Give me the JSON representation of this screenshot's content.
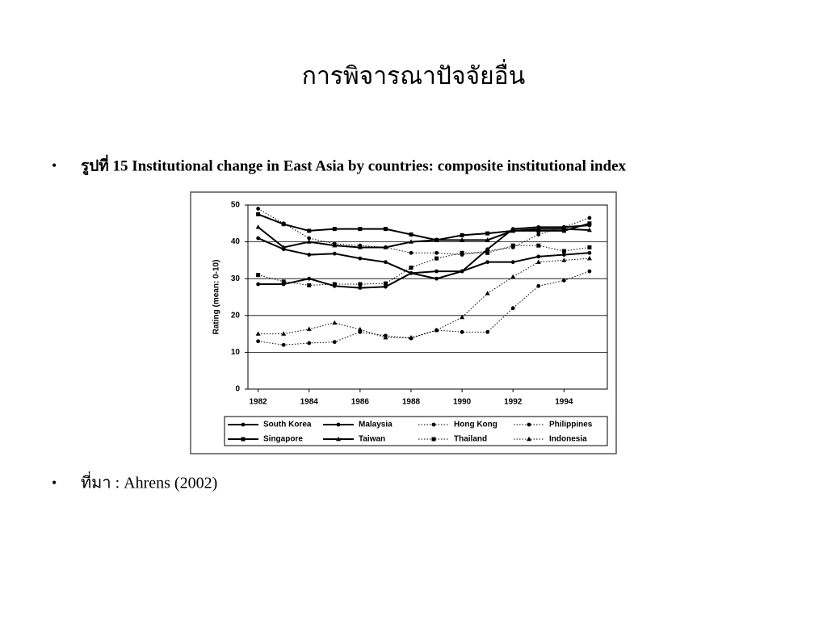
{
  "header": {
    "title": "การพิจารณาปัจจัยอื่น"
  },
  "bullets": [
    "รูปที่ 15 Institutional change in East Asia by countries: composite institutional index",
    "ที่มา : Ahrens (2002)"
  ],
  "chart_data": {
    "type": "line",
    "y_label": "Rating (mean: 0-10)",
    "x": [
      1982,
      1983,
      1984,
      1985,
      1986,
      1987,
      1988,
      1989,
      1990,
      1991,
      1992,
      1993,
      1994,
      1995
    ],
    "xlim": [
      1981.6,
      1995.7
    ],
    "xticks": [
      1982,
      1984,
      1986,
      1988,
      1990,
      1992,
      1994
    ],
    "ylim": [
      0,
      50
    ],
    "yticks": [
      0,
      10,
      20,
      30,
      40,
      50
    ],
    "grid": true,
    "series": [
      {
        "name": "South Korea",
        "color": "#000000",
        "style": "solid",
        "marker": "circle",
        "values": [
          41,
          38,
          36.5,
          36.8,
          35.5,
          34.5,
          31.5,
          30,
          32,
          34.5,
          34.5,
          36,
          36.5,
          37
        ]
      },
      {
        "name": "Malaysia",
        "color": "#000000",
        "style": "solid",
        "marker": "circle",
        "values": [
          28.5,
          28.5,
          30,
          28,
          27.5,
          27.8,
          31.5,
          32,
          32,
          38,
          43.5,
          44,
          44,
          44.5
        ]
      },
      {
        "name": "Hong Kong",
        "color": "#000000",
        "style": "dotted",
        "marker": "circle",
        "values": [
          49,
          45,
          41,
          39.5,
          39,
          38.5,
          37,
          37,
          36.5,
          37.5,
          38.5,
          42,
          44,
          46.5
        ]
      },
      {
        "name": "Philippines",
        "color": "#000000",
        "style": "dotted",
        "marker": "circle",
        "values": [
          13,
          12,
          12.5,
          12.8,
          15.5,
          14.5,
          13.8,
          16,
          15.5,
          15.5,
          22,
          28,
          29.5,
          32
        ]
      },
      {
        "name": "Singapore",
        "color": "#000000",
        "style": "solid",
        "marker": "square",
        "values": [
          47.5,
          44.8,
          43,
          43.5,
          43.5,
          43.5,
          42,
          40.5,
          41.8,
          42.3,
          43,
          43,
          43,
          45
        ]
      },
      {
        "name": "Taiwan",
        "color": "#000000",
        "style": "solid",
        "marker": "triangle",
        "values": [
          44,
          38.5,
          40,
          39,
          38.5,
          38.5,
          40,
          40.5,
          40.5,
          40.5,
          43,
          43.5,
          43.5,
          43.2
        ]
      },
      {
        "name": "Thailand",
        "color": "#000000",
        "style": "dotted",
        "marker": "square",
        "values": [
          31,
          29.2,
          28.2,
          28.5,
          28.5,
          28.7,
          33,
          35.5,
          37,
          37,
          39,
          39,
          37.5,
          38.5
        ]
      },
      {
        "name": "Indonesia",
        "color": "#000000",
        "style": "dotted",
        "marker": "triangle",
        "values": [
          15,
          15,
          16.3,
          18,
          16.2,
          14,
          14,
          16,
          19.5,
          26,
          30.5,
          34.5,
          35,
          35.5
        ]
      }
    ]
  }
}
